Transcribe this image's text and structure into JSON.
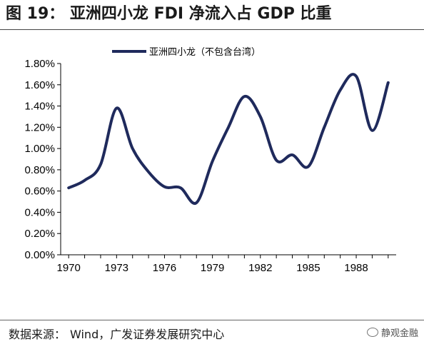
{
  "figure": {
    "title": "图 19：  亚洲四小龙 FDI 净流入占 GDP 比重"
  },
  "source": {
    "label": "数据来源：",
    "text": "Wind，广发证券发展研究中心"
  },
  "watermark": {
    "icon": "wechat-icon",
    "text": "静观金融"
  },
  "chart_data": {
    "type": "line",
    "title": "",
    "xlabel": "",
    "ylabel": "",
    "xlim": [
      1969.5,
      1990.5
    ],
    "ylim": [
      0,
      1.8
    ],
    "x_ticks": [
      1970,
      1973,
      1976,
      1979,
      1982,
      1985,
      1988
    ],
    "x_tick_labels": [
      "1970",
      "1973",
      "1976",
      "1979",
      "1982",
      "1985",
      "1988"
    ],
    "y_ticks": [
      0,
      0.2,
      0.4,
      0.6,
      0.8,
      1.0,
      1.2,
      1.4,
      1.6,
      1.8
    ],
    "y_tick_labels": [
      "0.00%",
      "0.20%",
      "0.40%",
      "0.60%",
      "0.80%",
      "1.00%",
      "1.20%",
      "1.40%",
      "1.60%",
      "1.80%"
    ],
    "grid": false,
    "legend": "top",
    "smooth": true,
    "series": [
      {
        "name": "亚洲四小龙（不包含台湾）",
        "color": "#1f2a5c",
        "x": [
          1970,
          1971,
          1972,
          1973,
          1974,
          1975,
          1976,
          1977,
          1978,
          1979,
          1980,
          1981,
          1982,
          1983,
          1984,
          1985,
          1986,
          1987,
          1988,
          1989,
          1990
        ],
        "y": [
          0.63,
          0.7,
          0.85,
          1.38,
          1.0,
          0.78,
          0.64,
          0.63,
          0.49,
          0.88,
          1.2,
          1.49,
          1.3,
          0.89,
          0.94,
          0.83,
          1.2,
          1.55,
          1.68,
          1.17,
          1.62
        ]
      }
    ]
  }
}
